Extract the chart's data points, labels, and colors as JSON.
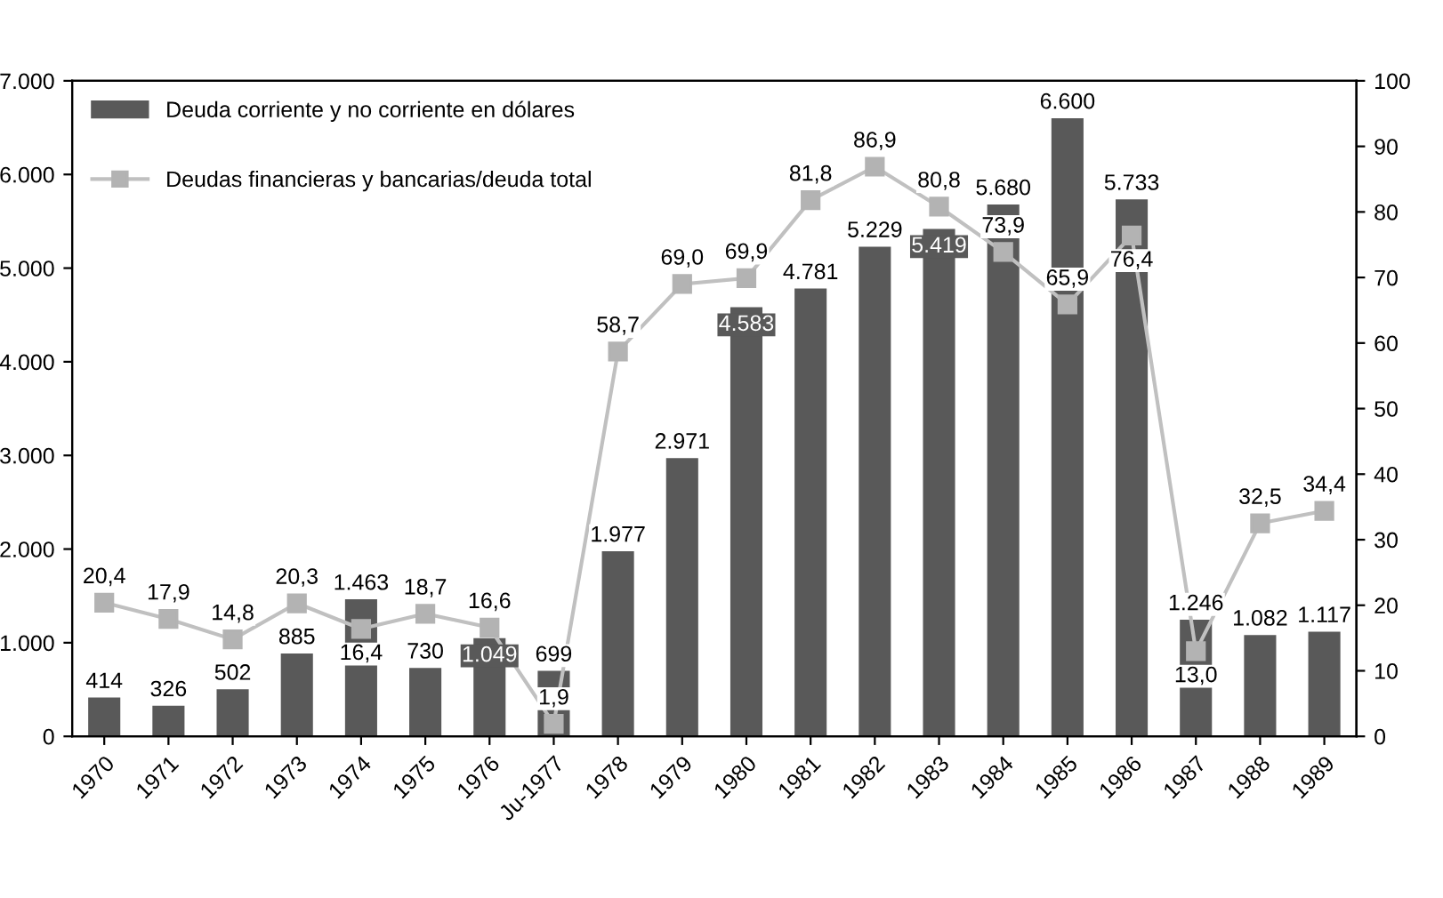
{
  "chart_data": {
    "type": "bar",
    "categories": [
      "1970",
      "1971",
      "1972",
      "1973",
      "1974",
      "1975",
      "1976",
      "Ju-1977",
      "1978",
      "1979",
      "1980",
      "1981",
      "1982",
      "1983",
      "1984",
      "1985",
      "1986",
      "1987",
      "1988",
      "1989"
    ],
    "series": [
      {
        "name": "Deuda corriente y no corriente en dólares",
        "color": "#595959",
        "values": [
          414,
          326,
          502,
          885,
          1463,
          730,
          1049,
          699,
          1977,
          2971,
          4583,
          4781,
          5229,
          5419,
          5680,
          6600,
          5733,
          1246,
          1082,
          1117
        ],
        "value_labels": [
          "414",
          "326",
          "502",
          "885",
          "1.463",
          "730",
          "1.049",
          "699",
          "1.977",
          "2.971",
          "4.583",
          "4.781",
          "5.229",
          "5.419",
          "5.680",
          "6.600",
          "5.733",
          "1.246",
          "1.082",
          "1.117"
        ]
      },
      {
        "name": "Deudas financieras y bancarias/deuda total",
        "type": "line",
        "axis": "y2",
        "color": "#c0c0c0",
        "marker": "square",
        "values": [
          20.4,
          17.9,
          14.8,
          20.3,
          16.4,
          18.7,
          16.6,
          1.9,
          58.7,
          69.0,
          69.9,
          81.8,
          86.9,
          80.8,
          73.9,
          65.9,
          76.4,
          13.0,
          32.5,
          34.4
        ],
        "value_labels": [
          "20,4",
          "17,9",
          "14,8",
          "20,3",
          "16,4",
          "18,7",
          "16,6",
          "1,9",
          "58,7",
          "69,0",
          "69,9",
          "81,8",
          "86,9",
          "80,8",
          "73,9",
          "65,9",
          "76,4",
          "13,0",
          "32,5",
          "34,4"
        ]
      }
    ],
    "ylim": [
      0,
      7000
    ],
    "yticks": [
      0,
      {
        "value": 1000,
        "label": "1.000"
      },
      {
        "value": 2000,
        "label": "2.000"
      },
      {
        "value": 3000,
        "label": "3.000"
      },
      {
        "value": 4000,
        "label": "4.000"
      },
      {
        "value": 5000,
        "label": "5.000"
      },
      {
        "value": 6000,
        "label": "6.000"
      },
      {
        "value": 7000,
        "label": "7.000"
      }
    ],
    "y2lim": [
      0,
      100
    ],
    "y2ticks": [
      0,
      10,
      20,
      30,
      40,
      50,
      60,
      70,
      80,
      90,
      100
    ],
    "legend": "top left",
    "grid": false
  }
}
